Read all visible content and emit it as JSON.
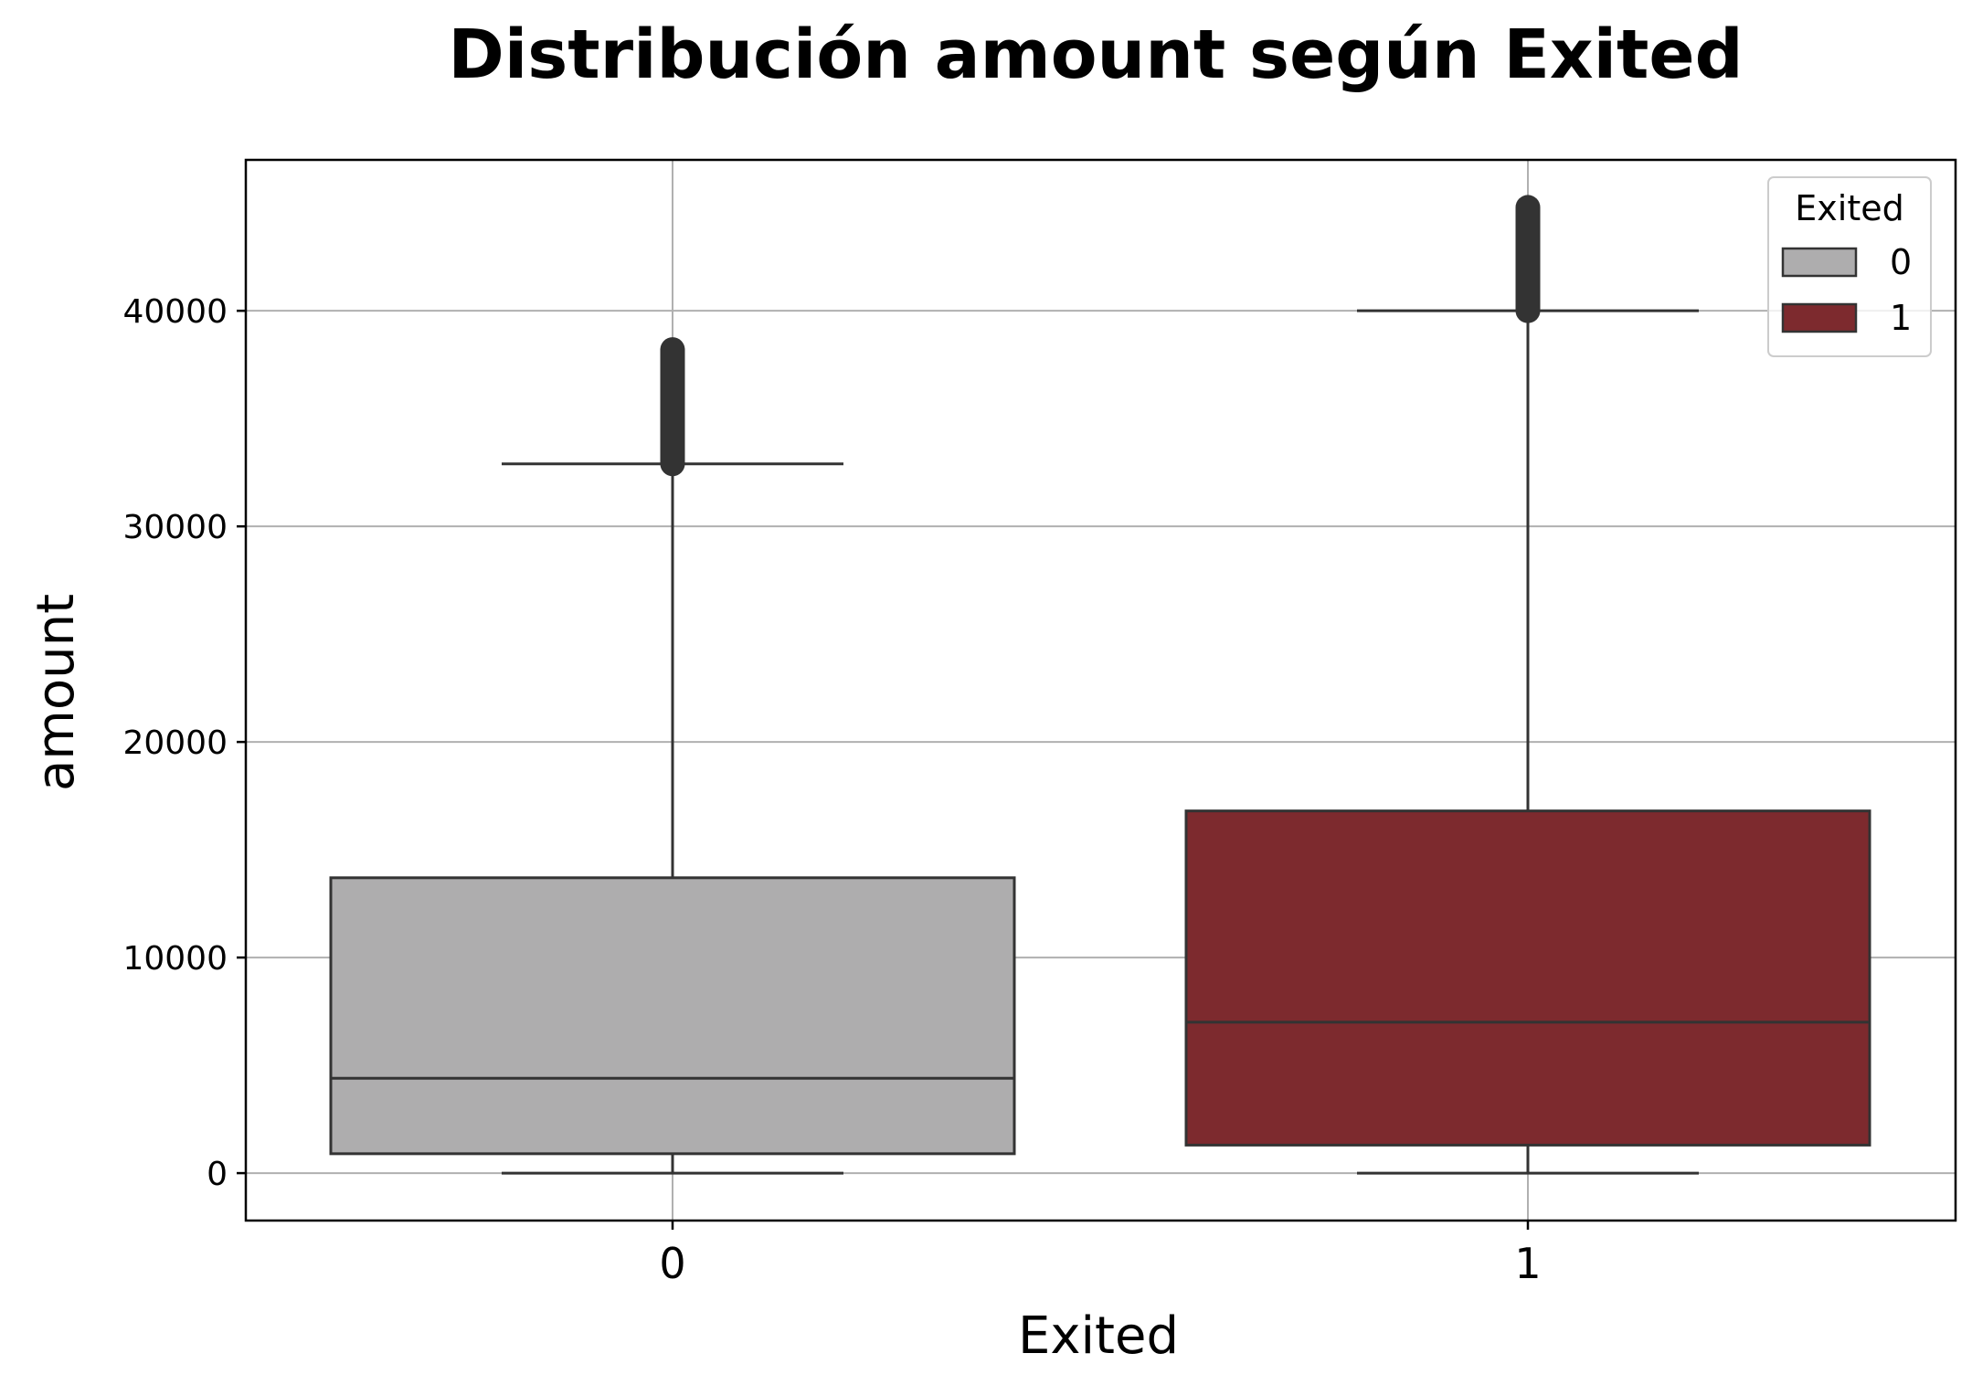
{
  "chart_data": {
    "type": "box",
    "title": "Distribución amount según Exited",
    "xlabel": "Exited",
    "ylabel": "amount",
    "categories": [
      "0",
      "1"
    ],
    "ylim": [
      -2200,
      47000
    ],
    "yticks": [
      0,
      10000,
      20000,
      30000,
      40000
    ],
    "ytick_labels": [
      "0",
      "10000",
      "20000",
      "30000",
      "40000"
    ],
    "grid": true,
    "legend": {
      "title": "Exited",
      "placement": "top-right",
      "entries": [
        "0",
        "1"
      ]
    },
    "series": [
      {
        "name": "0",
        "color": "#aeadae",
        "whisker_low": 0,
        "q1": 900,
        "median": 4400,
        "q3": 13700,
        "whisker_high": 32900,
        "outliers_range": [
          32900,
          38200
        ]
      },
      {
        "name": "1",
        "color": "#7d2a2e",
        "whisker_low": 0,
        "q1": 1300,
        "median": 7000,
        "q3": 16800,
        "whisker_high": 40000,
        "outliers_range": [
          40000,
          44800
        ]
      }
    ]
  }
}
